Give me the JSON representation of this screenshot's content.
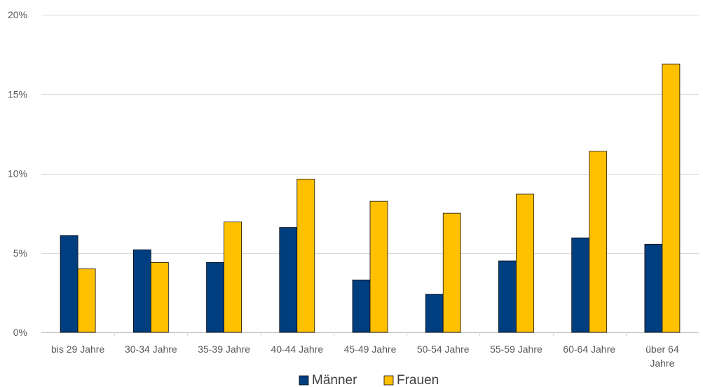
{
  "chart_data": {
    "type": "bar",
    "title": "",
    "xlabel": "",
    "ylabel": "",
    "categories": [
      [
        "bis 29 Jahre"
      ],
      [
        "30-34 Jahre"
      ],
      [
        "35-39 Jahre"
      ],
      [
        "40-44 Jahre"
      ],
      [
        "45-49 Jahre"
      ],
      [
        "50-54 Jahre"
      ],
      [
        "55-59 Jahre"
      ],
      [
        "60-64 Jahre"
      ],
      [
        "über 64",
        "Jahre"
      ]
    ],
    "series": [
      {
        "name": "Männer",
        "color": "#003F7F",
        "values": [
          6.1,
          5.2,
          4.4,
          6.6,
          3.3,
          2.4,
          4.5,
          5.95,
          5.55
        ]
      },
      {
        "name": "Frauen",
        "color": "#FFC000",
        "values": [
          4.0,
          4.4,
          6.95,
          9.65,
          8.25,
          7.5,
          8.7,
          11.4,
          16.9
        ]
      }
    ],
    "ylim": [
      0,
      20
    ],
    "yticks": [
      0,
      5,
      10,
      15,
      20
    ],
    "ytick_labels": [
      "0%",
      "5%",
      "10%",
      "15%",
      "20%"
    ],
    "grid": true,
    "legend_position": "bottom"
  }
}
